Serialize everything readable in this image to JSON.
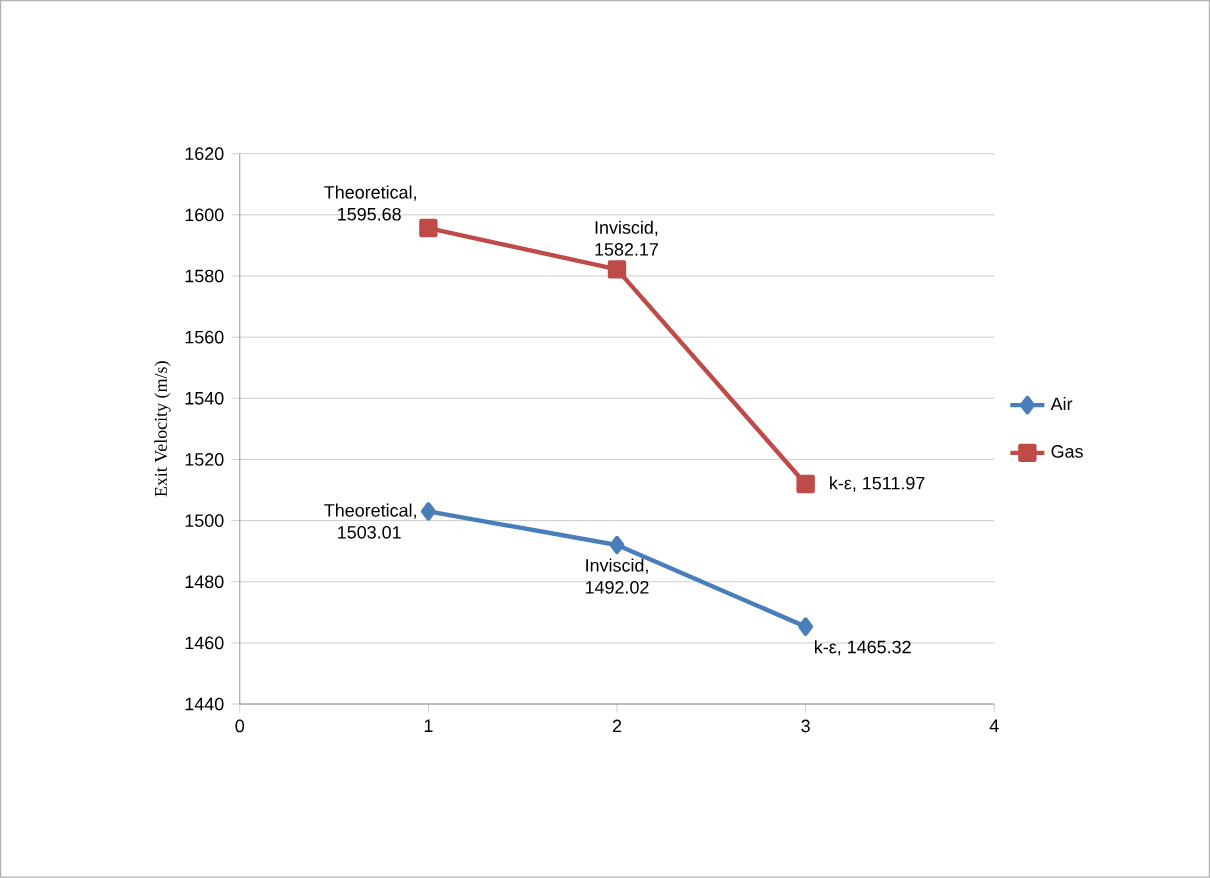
{
  "chart_data": {
    "type": "line",
    "ylabel": "Exit Velocity (m/s)",
    "x": [
      1,
      2,
      3
    ],
    "series": [
      {
        "name": "Air",
        "color": "#4a7ebb",
        "marker": "diamond",
        "values": [
          1503.01,
          1492.02,
          1465.32
        ],
        "value_labels": [
          "Theoretical, 1503.01",
          "Inviscid, 1492.02",
          "k-ε, 1465.32"
        ]
      },
      {
        "name": "Gas",
        "color": "#be4b48",
        "marker": "square",
        "values": [
          1595.68,
          1582.17,
          1511.97
        ],
        "value_labels": [
          "Theoretical, 1595.68",
          "Inviscid, 1582.17",
          "k-ε, 1511.97"
        ]
      }
    ],
    "xlim": [
      0,
      4
    ],
    "xticks": [
      0,
      1,
      2,
      3,
      4
    ],
    "ylim": [
      1440,
      1620
    ],
    "yticks": [
      1440,
      1460,
      1480,
      1500,
      1520,
      1540,
      1560,
      1580,
      1600,
      1620
    ],
    "grid": "y",
    "legend": "right",
    "line_style": "solid"
  }
}
